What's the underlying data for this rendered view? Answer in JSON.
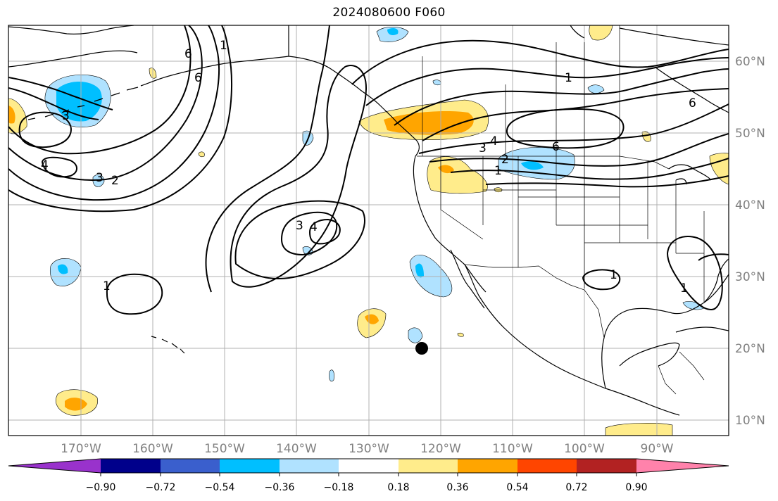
{
  "title": "2024080600 F060",
  "lon_labels": [
    "170°W",
    "160°W",
    "150°W",
    "140°W",
    "130°W",
    "120°W",
    "110°W",
    "100°W",
    "90°W"
  ],
  "lat_labels": [
    "60°N",
    "50°N",
    "40°N",
    "30°N",
    "20°N",
    "10°N"
  ],
  "colorbar": {
    "tick_labels": [
      "−0.90",
      "−0.72",
      "−0.54",
      "−0.36",
      "−0.18",
      "0.18",
      "0.36",
      "0.54",
      "0.72",
      "0.90"
    ],
    "colors": [
      "#9932cc",
      "#00008b",
      "#3a5fcd",
      "#00bfff",
      "#b0e2ff",
      "#ffffff",
      "#ffec8b",
      "#ffa500",
      "#ff4500",
      "#b22222",
      "#ff82ab"
    ]
  },
  "contour_labels": [
    "3",
    "6",
    "1",
    "6",
    "4",
    "3",
    "2",
    "3",
    "4",
    "2",
    "1",
    "4",
    "3",
    "6",
    "6",
    "1",
    "1",
    "1",
    "1"
  ],
  "marker": {
    "type": "storm-center",
    "lon": -122.5,
    "lat": 20.0
  },
  "map": {
    "lon_range": [
      -180,
      -80
    ],
    "lat_range": [
      8,
      65
    ],
    "projection": "cylindrical"
  }
}
